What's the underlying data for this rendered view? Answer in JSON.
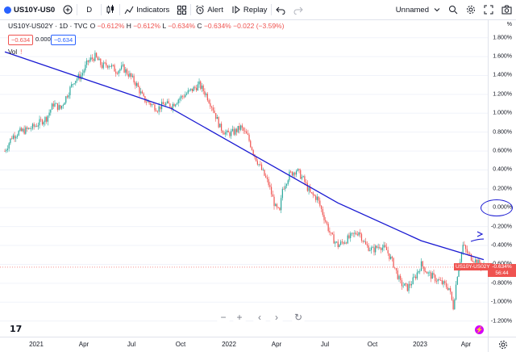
{
  "toolbar": {
    "symbol": "US10Y-US0",
    "interval": "D",
    "indicators_label": "Indicators",
    "alert_label": "Alert",
    "replay_label": "Replay",
    "layout_name": "Unnamed"
  },
  "legend": {
    "title": "US10Y-US02Y · 1D · TVC",
    "open_label": "O",
    "open": "−0.612%",
    "high_label": "H",
    "high": "−0.612%",
    "low_label": "L",
    "low": "−0.634%",
    "close_label": "C",
    "close": "−0.634%",
    "change": "−0.022 (−3.59%)",
    "bid": "−0.634",
    "spread": "0.000",
    "ask": "−0.634",
    "volume_label": "Vol"
  },
  "price_axis": {
    "unit": "%",
    "labels": [
      "1.800%",
      "1.600%",
      "1.400%",
      "1.200%",
      "1.000%",
      "0.800%",
      "0.600%",
      "0.400%",
      "0.200%",
      "0.000%",
      "-0.200%",
      "-0.400%",
      "-0.600%",
      "-0.800%",
      "-1.000%",
      "-1.200%"
    ],
    "last_price": "-0.634%",
    "countdown": "56:44",
    "symbol_tag": "US10Y-US02Y"
  },
  "time_axis": {
    "labels": [
      "2021",
      "Apr",
      "Jul",
      "Oct",
      "2022",
      "Apr",
      "Jul",
      "Oct",
      "2023",
      "Apr"
    ]
  },
  "colors": {
    "up": "#26a69a",
    "down": "#ef5350",
    "annotation": "#1919d2",
    "accent": "#2962ff"
  },
  "chart_data": {
    "type": "candlestick",
    "series": [
      {
        "name": "US10Y-US02Y",
        "points": [
          [
            0,
            0.6
          ],
          [
            5,
            0.75
          ],
          [
            10,
            0.8
          ],
          [
            15,
            0.82
          ],
          [
            20,
            0.85
          ],
          [
            25,
            0.9
          ],
          [
            30,
            0.95
          ],
          [
            35,
            1.1
          ],
          [
            40,
            1.05
          ],
          [
            45,
            1.2
          ],
          [
            50,
            1.35
          ],
          [
            55,
            1.4
          ],
          [
            60,
            1.55
          ],
          [
            65,
            1.6
          ],
          [
            70,
            1.5
          ],
          [
            75,
            1.52
          ],
          [
            80,
            1.45
          ],
          [
            85,
            1.48
          ],
          [
            90,
            1.4
          ],
          [
            95,
            1.3
          ],
          [
            100,
            1.15
          ],
          [
            105,
            1.1
          ],
          [
            110,
            1.05
          ],
          [
            115,
            1.1
          ],
          [
            120,
            1.08
          ],
          [
            125,
            1.15
          ],
          [
            130,
            1.2
          ],
          [
            135,
            1.25
          ],
          [
            140,
            1.3
          ],
          [
            145,
            1.2
          ],
          [
            150,
            1.05
          ],
          [
            155,
            0.85
          ],
          [
            160,
            0.78
          ],
          [
            165,
            0.8
          ],
          [
            170,
            0.85
          ],
          [
            175,
            0.75
          ],
          [
            180,
            0.55
          ],
          [
            185,
            0.4
          ],
          [
            190,
            0.25
          ],
          [
            195,
            0.0
          ],
          [
            198,
            -0.05
          ],
          [
            200,
            0.2
          ],
          [
            205,
            0.35
          ],
          [
            210,
            0.4
          ],
          [
            215,
            0.3
          ],
          [
            220,
            0.15
          ],
          [
            225,
            0.1
          ],
          [
            230,
            -0.1
          ],
          [
            235,
            -0.3
          ],
          [
            240,
            -0.4
          ],
          [
            245,
            -0.35
          ],
          [
            250,
            -0.3
          ],
          [
            255,
            -0.25
          ],
          [
            260,
            -0.4
          ],
          [
            265,
            -0.45
          ],
          [
            270,
            -0.4
          ],
          [
            275,
            -0.45
          ],
          [
            280,
            -0.6
          ],
          [
            285,
            -0.8
          ],
          [
            290,
            -0.85
          ],
          [
            295,
            -0.75
          ],
          [
            300,
            -0.6
          ],
          [
            305,
            -0.7
          ],
          [
            310,
            -0.75
          ],
          [
            315,
            -0.8
          ],
          [
            320,
            -0.85
          ],
          [
            323,
            -1.05
          ],
          [
            326,
            -0.7
          ],
          [
            330,
            -0.4
          ],
          [
            334,
            -0.5
          ],
          [
            338,
            -0.55
          ],
          [
            342,
            -0.6
          ],
          [
            345,
            -0.63
          ]
        ]
      }
    ],
    "trendline": [
      [
        0,
        1.65
      ],
      [
        60,
        1.35
      ],
      [
        120,
        1.05
      ],
      [
        180,
        0.55
      ],
      [
        240,
        0.05
      ],
      [
        300,
        -0.35
      ],
      [
        345,
        -0.55
      ]
    ],
    "ylim": [
      -1.28,
      1.9
    ],
    "x_ticks": [
      "2021",
      "Apr",
      "Jul",
      "Oct",
      "2022",
      "Apr",
      "Jul",
      "Oct",
      "2023",
      "Apr"
    ]
  }
}
